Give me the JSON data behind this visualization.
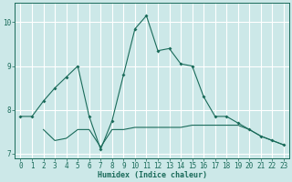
{
  "xlabel": "Humidex (Indice chaleur)",
  "background_color": "#cce8e8",
  "line_color": "#1a6b5a",
  "grid_color": "#ffffff",
  "line1_x": [
    0,
    1,
    2,
    3,
    4,
    5,
    6,
    7,
    8,
    9,
    10,
    11,
    12,
    13,
    14,
    15,
    16,
    17,
    18,
    19,
    20,
    21,
    22,
    23
  ],
  "line1_y": [
    7.85,
    7.85,
    8.2,
    8.5,
    8.75,
    9.0,
    7.85,
    7.1,
    7.75,
    8.8,
    9.85,
    10.15,
    9.35,
    9.4,
    9.05,
    9.0,
    8.3,
    7.85,
    7.85,
    7.7,
    7.55,
    7.4,
    7.3,
    7.2
  ],
  "line2_x": [
    2,
    3,
    4,
    5,
    6,
    7,
    8,
    9,
    10,
    11,
    12,
    13,
    14,
    15,
    16,
    17,
    18,
    19,
    20,
    21,
    22,
    23
  ],
  "line2_y": [
    7.55,
    7.3,
    7.35,
    7.55,
    7.55,
    7.15,
    7.55,
    7.55,
    7.6,
    7.6,
    7.6,
    7.6,
    7.6,
    7.65,
    7.65,
    7.65,
    7.65,
    7.65,
    7.55,
    7.4,
    7.3,
    7.2
  ],
  "xlim": [
    -0.5,
    23.5
  ],
  "ylim": [
    6.9,
    10.45
  ],
  "yticks": [
    7,
    8,
    9,
    10
  ],
  "xticks": [
    0,
    1,
    2,
    3,
    4,
    5,
    6,
    7,
    8,
    9,
    10,
    11,
    12,
    13,
    14,
    15,
    16,
    17,
    18,
    19,
    20,
    21,
    22,
    23
  ],
  "label_fontsize": 6,
  "tick_fontsize": 5.5
}
